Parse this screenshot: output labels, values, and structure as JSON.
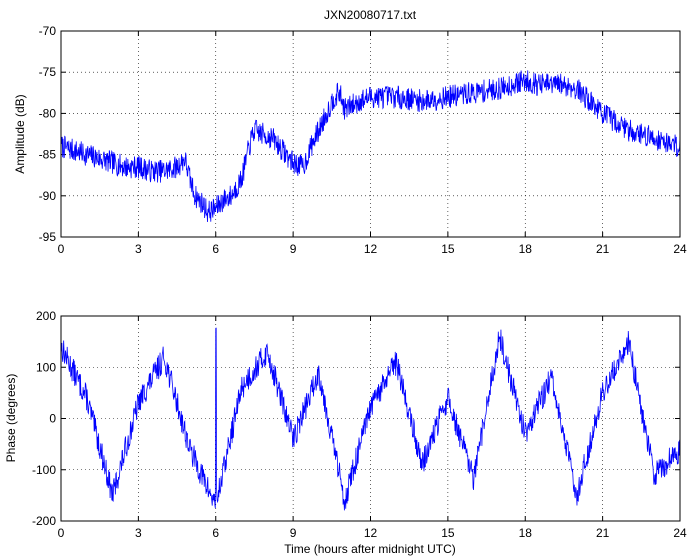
{
  "chart_data": [
    {
      "type": "line",
      "title": "JXN20080717.txt",
      "xlabel": "",
      "ylabel": "Amplitude (dB)",
      "xlim": [
        0,
        24
      ],
      "ylim": [
        -95,
        -70
      ],
      "xticks": [
        "0",
        "3",
        "6",
        "9",
        "12",
        "15",
        "18",
        "21",
        "24"
      ],
      "yticks": [
        "-70",
        "-75",
        "-80",
        "-85",
        "-90",
        "-95"
      ],
      "grid": true,
      "color": "#0000ff",
      "series": [
        {
          "noise": 1.4,
          "x": [
            0,
            0.5,
            1,
            1.5,
            2,
            2.5,
            3,
            3.5,
            4,
            4.5,
            4.8,
            5.0,
            5.2,
            5.5,
            5.7,
            6.0,
            6.3,
            6.6,
            7.0,
            7.3,
            7.5,
            7.8,
            8.2,
            8.6,
            9.0,
            9.4,
            9.7,
            10.0,
            10.3,
            10.6,
            10.8,
            11.0,
            11.3,
            11.6,
            12,
            13,
            14,
            15,
            16,
            17,
            17.5,
            18,
            18.5,
            19,
            19.5,
            20,
            20.5,
            21,
            21.5,
            22,
            22.5,
            23,
            23.5,
            24
          ],
          "y": [
            -84,
            -84.5,
            -85,
            -85.5,
            -86,
            -86.5,
            -86.5,
            -87,
            -87,
            -86.5,
            -85.5,
            -88,
            -90,
            -91,
            -92,
            -91.5,
            -90.5,
            -90,
            -88,
            -84,
            -82,
            -82.5,
            -83,
            -84.5,
            -86,
            -86.5,
            -84,
            -82,
            -80,
            -78,
            -77.5,
            -79.5,
            -79,
            -78.5,
            -78,
            -78,
            -78.5,
            -78,
            -77.5,
            -77,
            -76.5,
            -76,
            -76.5,
            -76.5,
            -76.5,
            -77,
            -78.5,
            -80,
            -81,
            -82,
            -82.5,
            -83,
            -83.5,
            -84
          ]
        }
      ]
    },
    {
      "type": "line",
      "title": "",
      "xlabel": "Time (hours after midnight UTC)",
      "ylabel": "Phase (degrees)",
      "xlim": [
        0,
        24
      ],
      "ylim": [
        -200,
        200
      ],
      "xticks": [
        "0",
        "3",
        "6",
        "9",
        "12",
        "15",
        "18",
        "21",
        "24"
      ],
      "yticks": [
        "200",
        "100",
        "0",
        "-100",
        "-200"
      ],
      "grid": true,
      "color": "#0000ff",
      "series": [
        {
          "wrapped": true,
          "range": [
            -180,
            180
          ],
          "x": [
            0,
            1,
            2,
            3,
            4,
            5,
            6,
            7,
            8,
            9,
            10,
            11,
            12,
            13,
            14,
            15,
            16,
            17,
            18,
            19,
            20,
            21,
            22,
            23,
            24
          ],
          "y": [
            140,
            40,
            -150,
            30,
            120,
            -60,
            -170,
            60,
            130,
            -40,
            90,
            -160,
            20,
            110,
            -90,
            40,
            -120,
            160,
            -30,
            80,
            -150,
            50,
            150,
            -110,
            -60
          ]
        }
      ]
    }
  ]
}
